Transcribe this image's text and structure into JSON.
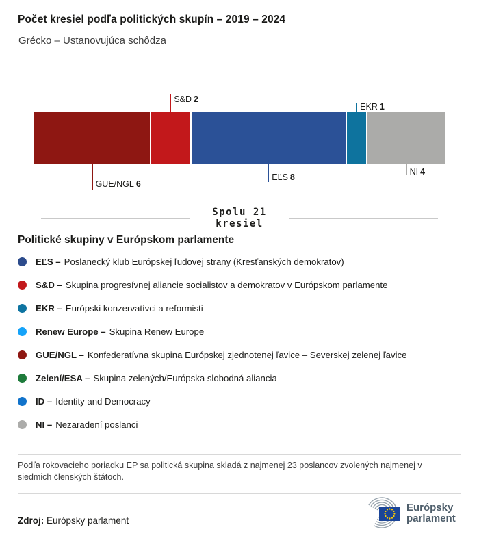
{
  "header": {
    "title": "Počet kresiel podľa politických skupín – 2019 – 2024",
    "subtitle": "Grécko – Ustanovujúca schôdza"
  },
  "chart_data": {
    "type": "stacked_bar",
    "title": "Počet kresiel podľa politických skupín – 2019 – 2024",
    "region": "Grécko – Ustanovujúca schôdza",
    "total_seats": 21,
    "total_label_line1": "Spolu 21",
    "total_label_line2": "kresiel",
    "segments": [
      {
        "name": "GUE/NGL",
        "seats": 6,
        "color": "#8E1712",
        "label_side": "below"
      },
      {
        "name": "S&D",
        "seats": 2,
        "color": "#C2181B",
        "label_side": "above"
      },
      {
        "name": "EĽS",
        "seats": 8,
        "color": "#2B5197",
        "label_side": "below"
      },
      {
        "name": "EKR",
        "seats": 1,
        "color": "#0E739E",
        "label_side": "above"
      },
      {
        "name": "NI",
        "seats": 4,
        "color": "#ABABA9",
        "label_side": "below"
      }
    ]
  },
  "legend": {
    "heading": "Politické skupiny v Európskom parlamente",
    "items": [
      {
        "abbr": "EĽS –",
        "desc": "Poslanecký klub Európskej ľudovej strany (Kresťanských demokratov)",
        "color": "#2C4B8C"
      },
      {
        "abbr": "S&D –",
        "desc": "Skupina progresívnej aliancie socialistov a demokratov v Európskom parlamente",
        "color": "#C2191C"
      },
      {
        "abbr": "EKR –",
        "desc": "Európski konzervatívci a reformisti",
        "color": "#0E74A1"
      },
      {
        "abbr": "Renew Europe –",
        "desc": "Skupina Renew Europe",
        "color": "#15A3F9"
      },
      {
        "abbr": "GUE/NGL –",
        "desc": "Konfederatívna skupina Európskej zjednotenej ľavice – Severskej zelenej ľavice",
        "color": "#8E1712"
      },
      {
        "abbr": "Zelení/ESA –",
        "desc": "Skupina zelených/Európska slobodná aliancia",
        "color": "#1E7B3B"
      },
      {
        "abbr": "ID –",
        "desc": "Identity and Democracy",
        "color": "#1173CB"
      },
      {
        "abbr": "NI –",
        "desc": "Nezaradení poslanci",
        "color": "#ACACAA"
      }
    ]
  },
  "footnote": "Podľa rokovacieho poriadku EP sa politická skupina skladá z najmenej 23 poslancov zvolených najmenej v siedmich členských štátoch.",
  "source": {
    "label": "Zdroj:",
    "value": "Európsky parlament"
  },
  "logo": {
    "line1": "Európsky",
    "line2": "parlament",
    "flag_color": "#1B4598",
    "star_color": "#FFCC00",
    "text_color": "#4E5E6B"
  }
}
